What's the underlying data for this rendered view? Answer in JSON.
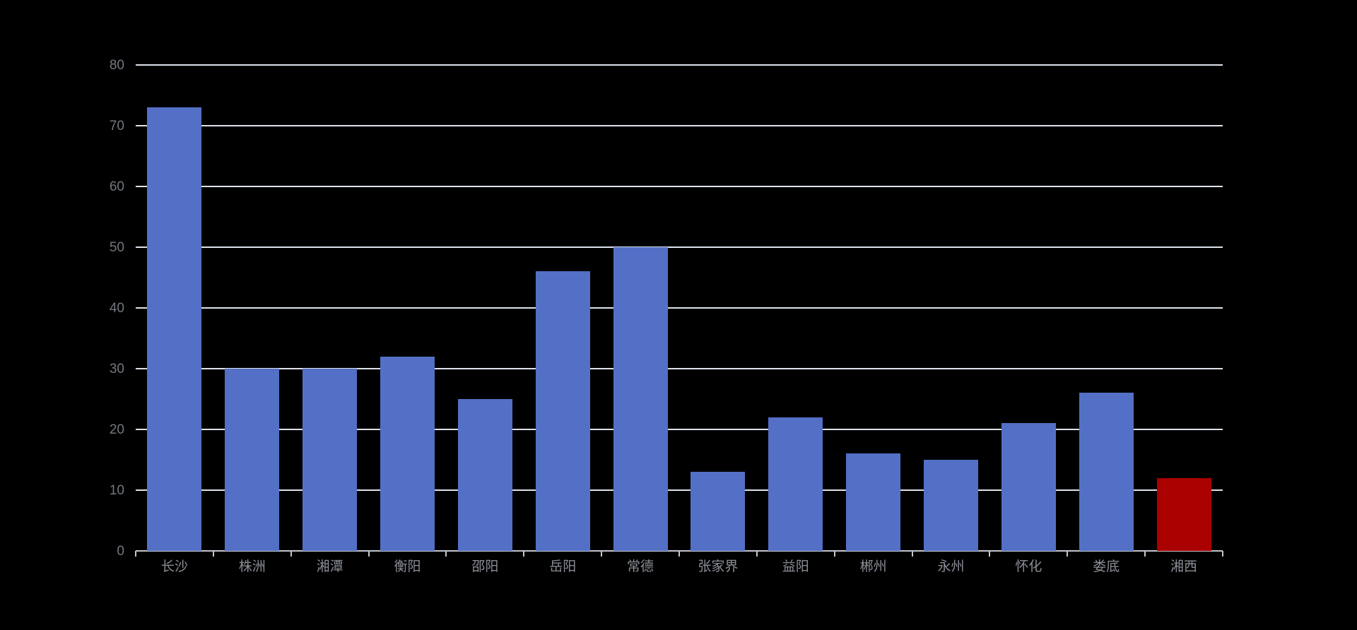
{
  "page": {
    "background_color": "#000000"
  },
  "chart_data": {
    "type": "bar",
    "title": "",
    "xlabel": "",
    "ylabel": "",
    "categories": [
      "长沙",
      "株洲",
      "湘潭",
      "衡阳",
      "邵阳",
      "岳阳",
      "常德",
      "张家界",
      "益阳",
      "郴州",
      "永州",
      "怀化",
      "娄底",
      "湘西"
    ],
    "values": [
      73,
      30,
      30,
      32,
      25,
      46,
      50,
      13,
      22,
      16,
      15,
      21,
      26,
      12
    ],
    "highlighted_category": "湘西",
    "highlighted_index": 13,
    "bar_color_default": "#5470C6",
    "bar_color_highlight": "#AA0000",
    "ylim": [
      0,
      80
    ],
    "yticks": [
      0,
      10,
      20,
      30,
      40,
      50,
      60,
      70,
      80
    ],
    "grid": true,
    "legend": false,
    "gridline_color": "#DDE2EC",
    "axis_line_color": "#C2C6CE",
    "ytick_label_color": "#73777F",
    "xtick_label_color": "#8A8E96"
  }
}
